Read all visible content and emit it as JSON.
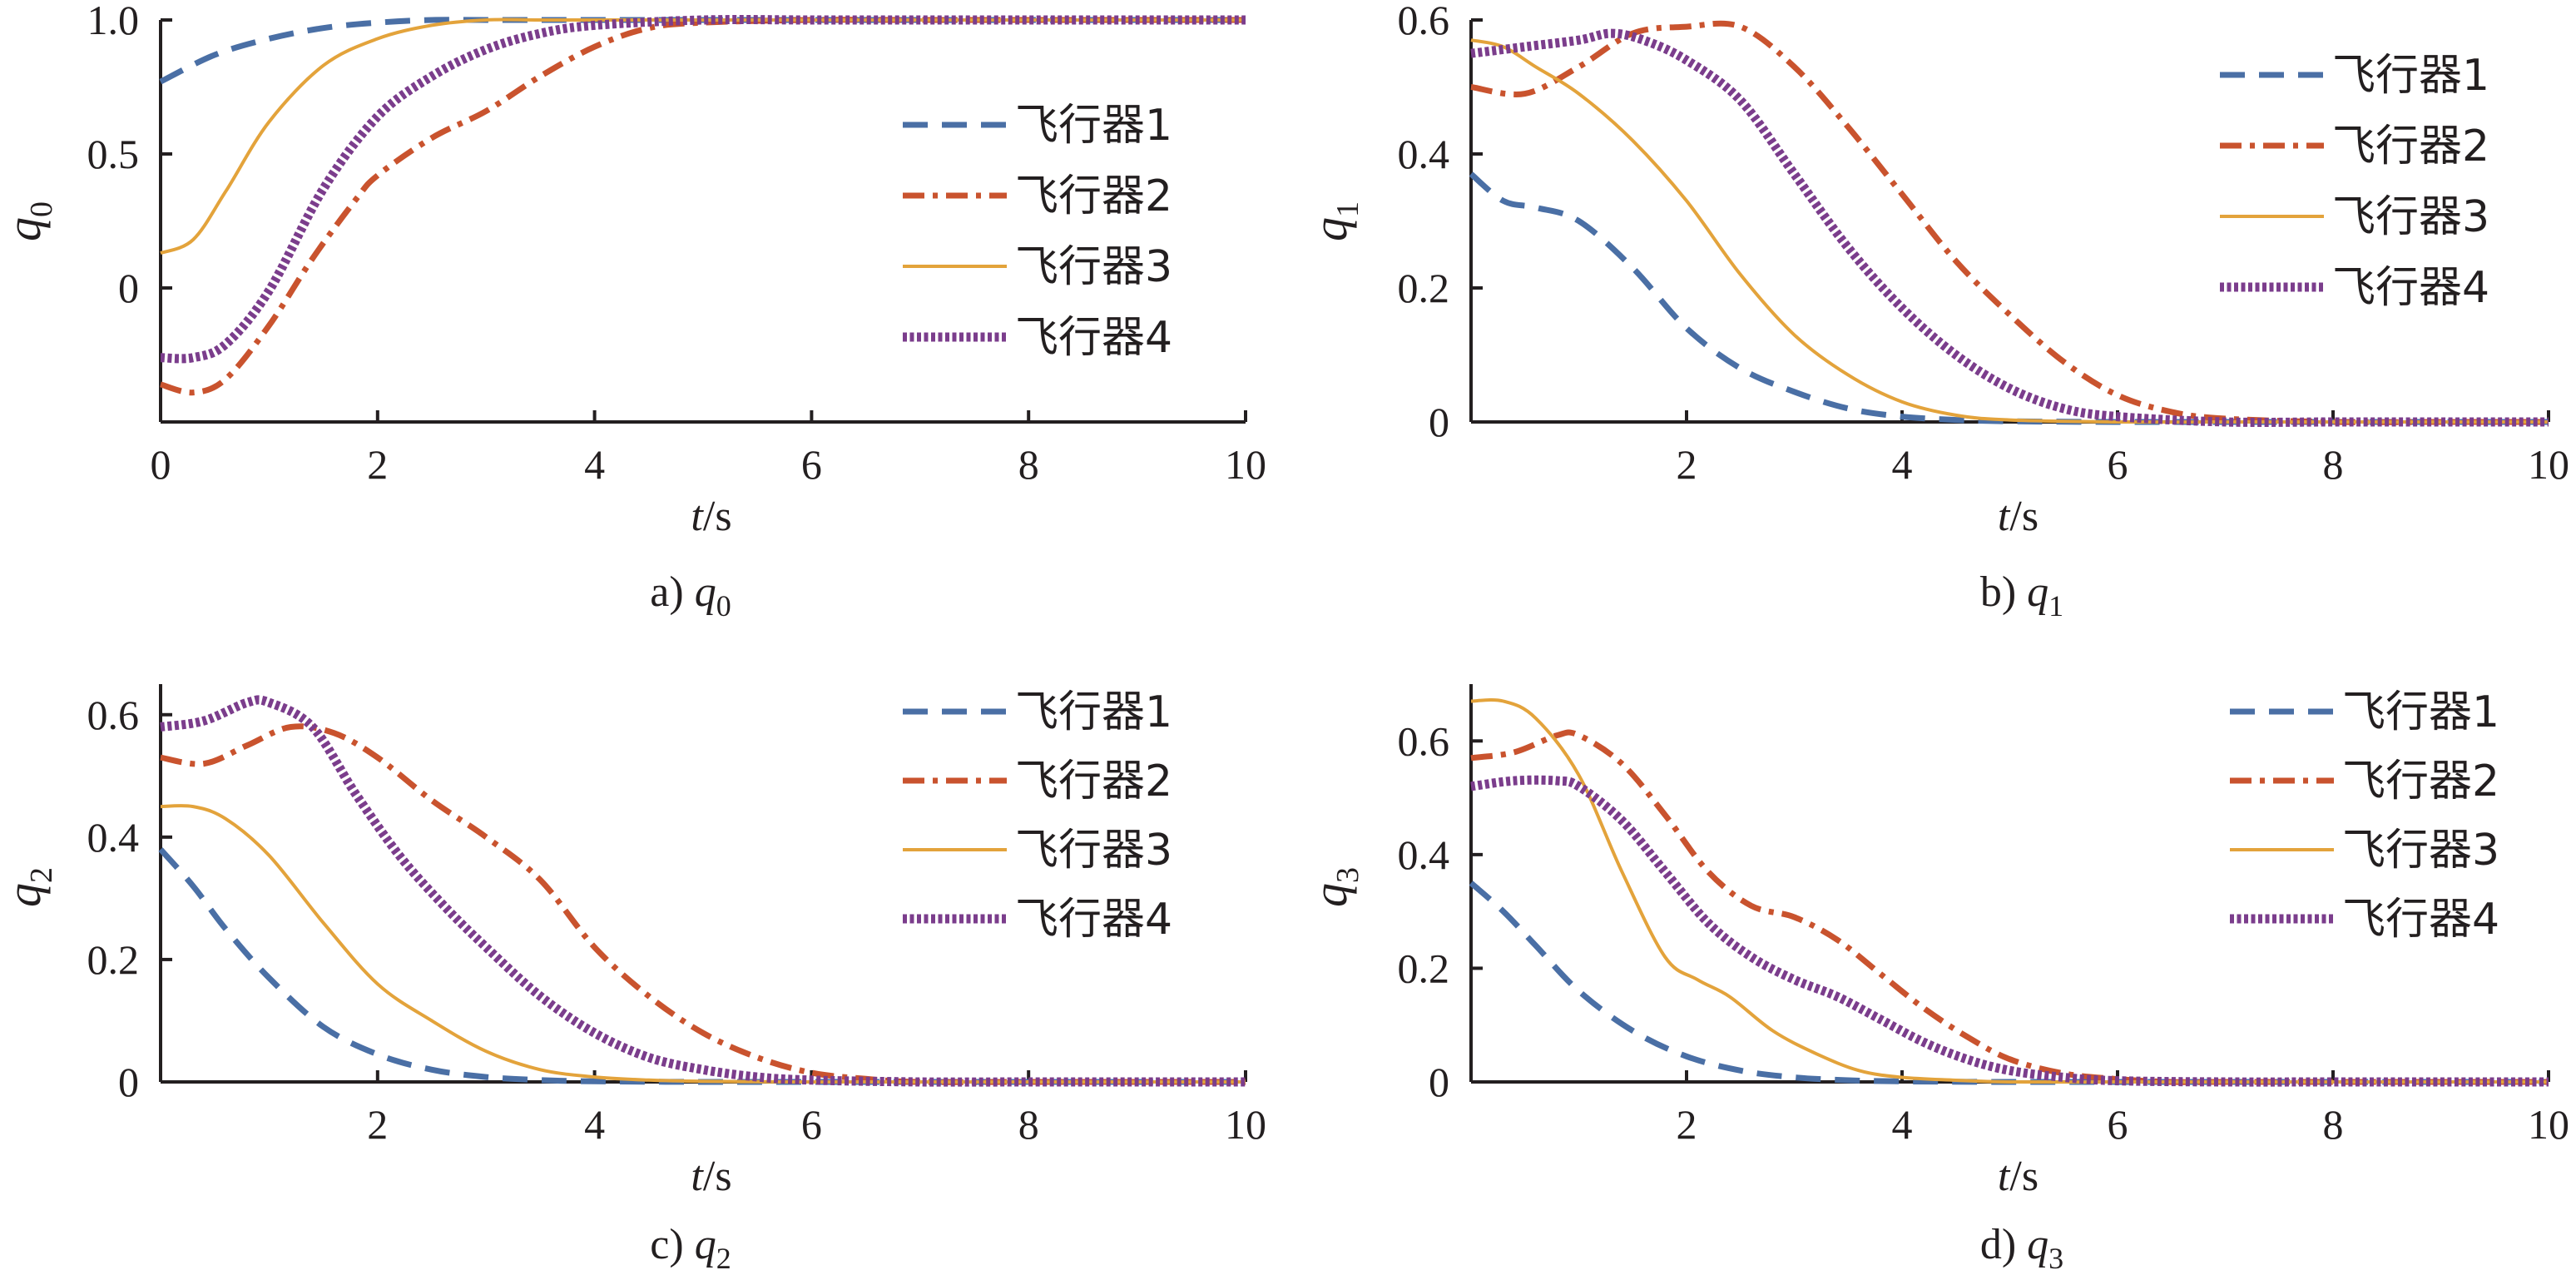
{
  "series_styles": [
    {
      "name": "飞行器1",
      "color": "#4a6fa5",
      "dash": "dashed"
    },
    {
      "name": "飞行器2",
      "color": "#c9532e",
      "dash": "dashdot"
    },
    {
      "name": "飞行器3",
      "color": "#e3a33b",
      "dash": "solid"
    },
    {
      "name": "飞行器4",
      "color": "#7b3d8c",
      "dash": "dotted"
    }
  ],
  "x_axis_label_var": "t",
  "x_axis_label_unit": "/s",
  "chart_data": [
    {
      "type": "line",
      "caption_prefix": "a)",
      "caption_var": "q",
      "caption_sub": "0",
      "ylabel_var": "q",
      "ylabel_sub": "0",
      "xlabel": "t/s",
      "xlim": [
        0,
        10
      ],
      "ylim": [
        -0.5,
        1.0
      ],
      "xticks": [
        "0",
        "2",
        "4",
        "6",
        "8",
        "10"
      ],
      "xtick_values": [
        0,
        2,
        4,
        6,
        8,
        10
      ],
      "yticks": [
        "1.0",
        "0.5",
        "0"
      ],
      "ytick_values": [
        1.0,
        0.5,
        0
      ],
      "legend_position": "right-middle",
      "series": [
        {
          "name": "飞行器1",
          "x": [
            0,
            0.5,
            1,
            1.5,
            2,
            2.5,
            3,
            3.5,
            4,
            5,
            6,
            7,
            8,
            9,
            10
          ],
          "y": [
            0.77,
            0.87,
            0.93,
            0.97,
            0.99,
            1.0,
            1.0,
            1.0,
            1.0,
            1.0,
            1.0,
            1.0,
            1.0,
            1.0,
            1.0
          ]
        },
        {
          "name": "飞行器2",
          "x": [
            0,
            0.3,
            0.6,
            1,
            1.4,
            1.8,
            2,
            2.5,
            3,
            3.5,
            4,
            4.5,
            5,
            6,
            7,
            8,
            9,
            10
          ],
          "y": [
            -0.36,
            -0.39,
            -0.34,
            -0.14,
            0.11,
            0.33,
            0.42,
            0.56,
            0.66,
            0.79,
            0.9,
            0.97,
            0.99,
            1.0,
            1.0,
            1.0,
            1.0,
            1.0
          ]
        },
        {
          "name": "飞行器3",
          "x": [
            0,
            0.3,
            0.6,
            1,
            1.5,
            2,
            2.5,
            3,
            3.5,
            4,
            5,
            6,
            7,
            8,
            9,
            10
          ],
          "y": [
            0.13,
            0.18,
            0.36,
            0.62,
            0.83,
            0.93,
            0.98,
            1.0,
            1.0,
            1.0,
            1.0,
            1.0,
            1.0,
            1.0,
            1.0,
            1.0
          ]
        },
        {
          "name": "飞行器4",
          "x": [
            0,
            0.3,
            0.6,
            1,
            1.5,
            2,
            2.5,
            3,
            3.5,
            4,
            5,
            6,
            7,
            8,
            9,
            10
          ],
          "y": [
            -0.26,
            -0.26,
            -0.21,
            -0.01,
            0.37,
            0.64,
            0.79,
            0.89,
            0.95,
            0.98,
            1.0,
            1.0,
            1.0,
            1.0,
            1.0,
            1.0
          ]
        }
      ]
    },
    {
      "type": "line",
      "caption_prefix": "b)",
      "caption_var": "q",
      "caption_sub": "1",
      "ylabel_var": "q",
      "ylabel_sub": "1",
      "xlabel": "t/s",
      "xlim": [
        0,
        10
      ],
      "ylim": [
        0,
        0.6
      ],
      "xticks": [
        "2",
        "4",
        "6",
        "8",
        "10"
      ],
      "xtick_values": [
        2,
        4,
        6,
        8,
        10
      ],
      "yticks": [
        "0.6",
        "0.4",
        "0.2",
        "0"
      ],
      "ytick_values": [
        0.6,
        0.4,
        0.2,
        0
      ],
      "legend_position": "top-right",
      "series": [
        {
          "name": "飞行器1",
          "x": [
            0,
            0.3,
            0.6,
            1,
            1.5,
            2,
            2.5,
            3,
            3.5,
            4,
            4.5,
            5,
            6,
            7,
            8,
            9,
            10
          ],
          "y": [
            0.37,
            0.33,
            0.32,
            0.3,
            0.23,
            0.14,
            0.08,
            0.045,
            0.02,
            0.008,
            0.003,
            0.001,
            0,
            0,
            0,
            0,
            0
          ]
        },
        {
          "name": "飞行器2",
          "x": [
            0,
            0.5,
            1,
            1.5,
            2,
            2.5,
            3,
            3.5,
            4,
            4.5,
            5,
            5.5,
            6,
            6.5,
            7,
            8,
            9,
            10
          ],
          "y": [
            0.5,
            0.49,
            0.53,
            0.58,
            0.59,
            0.59,
            0.53,
            0.44,
            0.34,
            0.24,
            0.16,
            0.09,
            0.04,
            0.015,
            0.005,
            0,
            0,
            0
          ]
        },
        {
          "name": "飞行器3",
          "x": [
            0,
            0.3,
            0.6,
            1,
            1.5,
            2,
            2.5,
            3,
            3.5,
            4,
            4.5,
            5,
            6,
            7,
            8,
            9,
            10
          ],
          "y": [
            0.57,
            0.56,
            0.53,
            0.49,
            0.42,
            0.33,
            0.22,
            0.13,
            0.07,
            0.03,
            0.01,
            0.003,
            0,
            0,
            0,
            0,
            0
          ]
        },
        {
          "name": "飞行器4",
          "x": [
            0,
            0.5,
            1,
            1.3,
            1.6,
            2,
            2.5,
            3,
            3.5,
            4,
            4.5,
            5,
            5.5,
            6,
            7,
            8,
            9,
            10
          ],
          "y": [
            0.55,
            0.56,
            0.57,
            0.58,
            0.57,
            0.54,
            0.48,
            0.37,
            0.26,
            0.17,
            0.1,
            0.05,
            0.02,
            0.008,
            0,
            0,
            0,
            0
          ]
        }
      ]
    },
    {
      "type": "line",
      "caption_prefix": "c)",
      "caption_var": "q",
      "caption_sub": "2",
      "ylabel_var": "q",
      "ylabel_sub": "2",
      "xlabel": "t/s",
      "xlim": [
        0,
        10
      ],
      "ylim": [
        0,
        0.65
      ],
      "xticks": [
        "2",
        "4",
        "6",
        "8",
        "10"
      ],
      "xtick_values": [
        2,
        4,
        6,
        8,
        10
      ],
      "yticks": [
        "0.6",
        "0.4",
        "0.2",
        "0"
      ],
      "ytick_values": [
        0.6,
        0.4,
        0.2,
        0
      ],
      "legend_position": "top-right",
      "series": [
        {
          "name": "飞行器1",
          "x": [
            0,
            0.3,
            0.6,
            1,
            1.5,
            2,
            2.5,
            3,
            3.5,
            4,
            5,
            6,
            7,
            8,
            9,
            10
          ],
          "y": [
            0.38,
            0.32,
            0.25,
            0.17,
            0.09,
            0.045,
            0.02,
            0.008,
            0.003,
            0.001,
            0,
            0,
            0,
            0,
            0,
            0
          ]
        },
        {
          "name": "飞行器2",
          "x": [
            0,
            0.4,
            0.8,
            1.2,
            1.6,
            2,
            2.5,
            3,
            3.5,
            4,
            4.5,
            5,
            5.5,
            6,
            6.5,
            7,
            8,
            9,
            10
          ],
          "y": [
            0.53,
            0.52,
            0.55,
            0.58,
            0.57,
            0.53,
            0.46,
            0.4,
            0.33,
            0.22,
            0.14,
            0.08,
            0.04,
            0.015,
            0.005,
            0,
            0,
            0,
            0
          ]
        },
        {
          "name": "飞行器3",
          "x": [
            0,
            0.3,
            0.6,
            1,
            1.5,
            2,
            2.5,
            3,
            3.5,
            4,
            4.5,
            5,
            6,
            7,
            8,
            9,
            10
          ],
          "y": [
            0.45,
            0.45,
            0.43,
            0.37,
            0.26,
            0.16,
            0.1,
            0.05,
            0.02,
            0.008,
            0.003,
            0.001,
            0,
            0,
            0,
            0,
            0
          ]
        },
        {
          "name": "飞行器4",
          "x": [
            0,
            0.4,
            0.8,
            1,
            1.4,
            1.8,
            2.2,
            2.6,
            3,
            3.5,
            4,
            4.5,
            5,
            5.5,
            6,
            7,
            8,
            9,
            10
          ],
          "y": [
            0.58,
            0.59,
            0.62,
            0.62,
            0.58,
            0.47,
            0.37,
            0.29,
            0.22,
            0.14,
            0.08,
            0.04,
            0.02,
            0.008,
            0.003,
            0,
            0,
            0,
            0
          ]
        }
      ]
    },
    {
      "type": "line",
      "caption_prefix": "d)",
      "caption_var": "q",
      "caption_sub": "3",
      "ylabel_var": "q",
      "ylabel_sub": "3",
      "xlabel": "t/s",
      "xlim": [
        0,
        10
      ],
      "ylim": [
        0,
        0.7
      ],
      "xticks": [
        "2",
        "4",
        "6",
        "8",
        "10"
      ],
      "xtick_values": [
        2,
        4,
        6,
        8,
        10
      ],
      "yticks": [
        "0.6",
        "0.4",
        "0.2",
        "0"
      ],
      "ytick_values": [
        0.6,
        0.4,
        0.2,
        0
      ],
      "legend_position": "top-right",
      "series": [
        {
          "name": "飞行器1",
          "x": [
            0,
            0.3,
            0.6,
            1,
            1.5,
            2,
            2.5,
            3,
            3.5,
            4,
            5,
            6,
            7,
            8,
            9,
            10
          ],
          "y": [
            0.35,
            0.3,
            0.24,
            0.16,
            0.09,
            0.045,
            0.02,
            0.008,
            0.003,
            0.001,
            0,
            0,
            0,
            0,
            0,
            0
          ]
        },
        {
          "name": "飞行器2",
          "x": [
            0,
            0.4,
            0.8,
            1,
            1.4,
            1.8,
            2.2,
            2.6,
            3,
            3.4,
            3.8,
            4.2,
            4.6,
            5,
            5.5,
            6,
            6.5,
            7,
            8,
            9,
            10
          ],
          "y": [
            0.57,
            0.58,
            0.61,
            0.61,
            0.56,
            0.47,
            0.37,
            0.31,
            0.29,
            0.25,
            0.19,
            0.13,
            0.08,
            0.04,
            0.015,
            0.005,
            0,
            0,
            0,
            0,
            0
          ]
        },
        {
          "name": "飞行器3",
          "x": [
            0,
            0.3,
            0.6,
            1,
            1.4,
            1.8,
            2.1,
            2.4,
            2.8,
            3.2,
            3.6,
            4,
            4.5,
            5,
            6,
            7,
            8,
            9,
            10
          ],
          "y": [
            0.67,
            0.67,
            0.64,
            0.54,
            0.37,
            0.22,
            0.18,
            0.15,
            0.09,
            0.05,
            0.02,
            0.008,
            0.003,
            0,
            0,
            0,
            0,
            0,
            0
          ]
        },
        {
          "name": "飞行器4",
          "x": [
            0,
            0.4,
            0.8,
            1,
            1.4,
            1.8,
            2.2,
            2.6,
            3,
            3.4,
            3.8,
            4.2,
            4.6,
            5,
            5.5,
            6,
            7,
            8,
            9,
            10
          ],
          "y": [
            0.52,
            0.53,
            0.53,
            0.52,
            0.46,
            0.37,
            0.28,
            0.22,
            0.18,
            0.15,
            0.11,
            0.07,
            0.04,
            0.02,
            0.008,
            0.002,
            0,
            0,
            0,
            0
          ]
        }
      ]
    }
  ]
}
